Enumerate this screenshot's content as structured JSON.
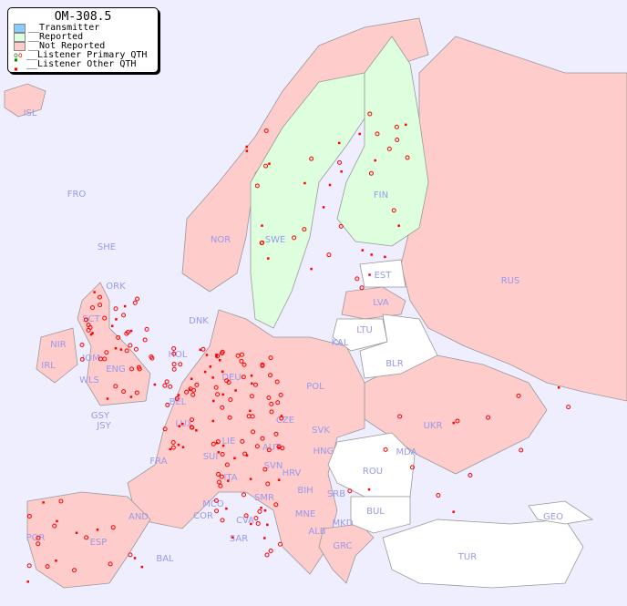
{
  "title": "OM-308.5",
  "legend": [
    {
      "label": "__Transmitter",
      "color": "#88ccff"
    },
    {
      "label": "__Reported",
      "color": "#ddffdd"
    },
    {
      "label": "__Not Reported",
      "color": "#ffcccc"
    },
    {
      "label": "__Listener Primary QTH",
      "marker": "circle"
    },
    {
      "label": "__Listener Other QTH",
      "marker": "square"
    }
  ],
  "colors": {
    "sea": "#eeeeff",
    "not_reported": "#ffcccc",
    "reported": "#ddffdd",
    "no_data": "#ffffff",
    "listener": "#ff0000",
    "listener_reported": "#008800"
  },
  "countries": [
    "ISL",
    "FRO",
    "SHE",
    "ORK",
    "NOR",
    "SWE",
    "FIN",
    "EST",
    "RUS",
    "LVA",
    "LTU",
    "KAL",
    "BLR",
    "DNK",
    "HOL",
    "IRL",
    "NIR",
    "SCT",
    "IOM",
    "WLS",
    "ENG",
    "GSY",
    "JSY",
    "BEL",
    "LUX",
    "DEU",
    "POL",
    "CZE",
    "SVK",
    "UKR",
    "MDA",
    "ROU",
    "HNG",
    "AUT",
    "SUI",
    "LIE",
    "FRA",
    "SVN",
    "HRV",
    "BIH",
    "SRB",
    "ITA",
    "SMR",
    "MCO",
    "COR",
    "CVA",
    "AND",
    "POR",
    "ESP",
    "BAL",
    "SAR",
    "MNE",
    "ALB",
    "MKD",
    "BUL",
    "GRC",
    "TUR",
    "GEO"
  ]
}
